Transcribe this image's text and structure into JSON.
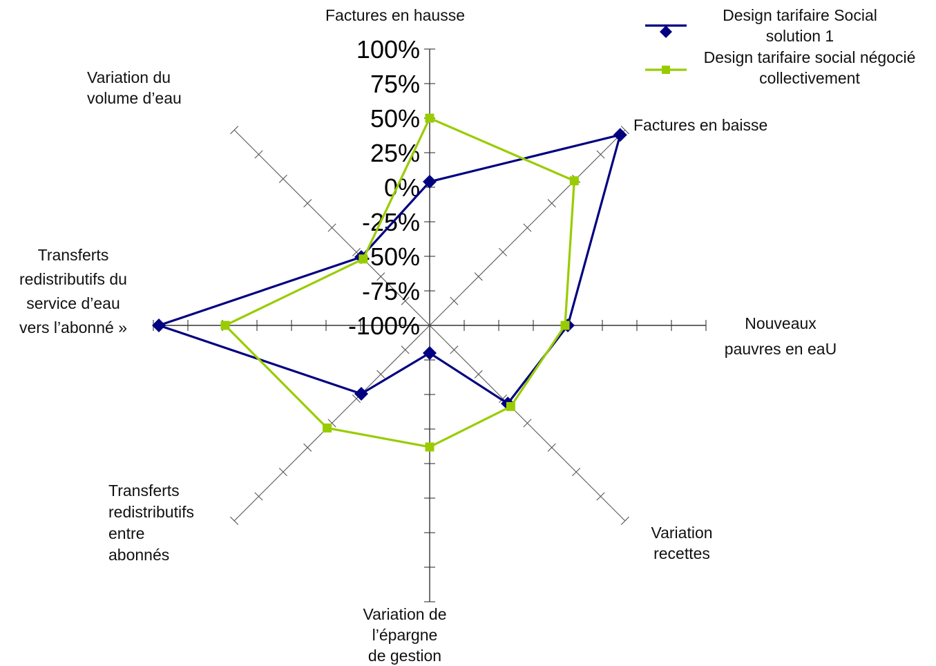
{
  "chart_data": {
    "type": "radar",
    "axes": [
      "Factures en hausse",
      "Factures en baisse",
      "Nouveaux pauvres en eaU",
      "Variation recettes",
      "Variation de l’épargne de gestion",
      "Transferts redistributifs entre abonnés",
      "Transferts redistributifs du service d’eau vers l’abonné »",
      "Variation du volume d’eau"
    ],
    "axis_label_lines": [
      [
        "Factures en hausse"
      ],
      [
        "Factures en baisse"
      ],
      [
        "Nouveaux",
        "pauvres en eaU"
      ],
      [
        "Variation",
        "recettes"
      ],
      [
        "Variation de",
        "l’épargne",
        "de gestion"
      ],
      [
        "Transferts",
        "redistributifs",
        "entre",
        "abonnés"
      ],
      [
        "Transferts",
        "redistributifs du",
        "service d’eau",
        "vers l’abonné »"
      ],
      [
        "Variation du",
        "volume d’eau"
      ]
    ],
    "tick_labels": [
      "100%",
      "75%",
      "50%",
      "25%",
      "0%",
      "-25%",
      "-50%",
      "-75%",
      "-100%"
    ],
    "range": [
      -100,
      100
    ],
    "series": [
      {
        "name": "Design tarifaire Social solution 1",
        "legend_lines": [
          "Design tarifaire Social",
          "solution 1"
        ],
        "color": "#000080",
        "marker": "diamond",
        "values": [
          4,
          95,
          0,
          -20,
          -80,
          -30,
          96,
          -30
        ]
      },
      {
        "name": "Design tarifaire social négocié collectivement",
        "legend_lines": [
          "Design tarifaire social négocié",
          "collectivement"
        ],
        "color": "#99cc00",
        "marker": "square",
        "values": [
          50,
          48,
          -2,
          -17,
          -12,
          5,
          48,
          -32
        ]
      }
    ]
  }
}
